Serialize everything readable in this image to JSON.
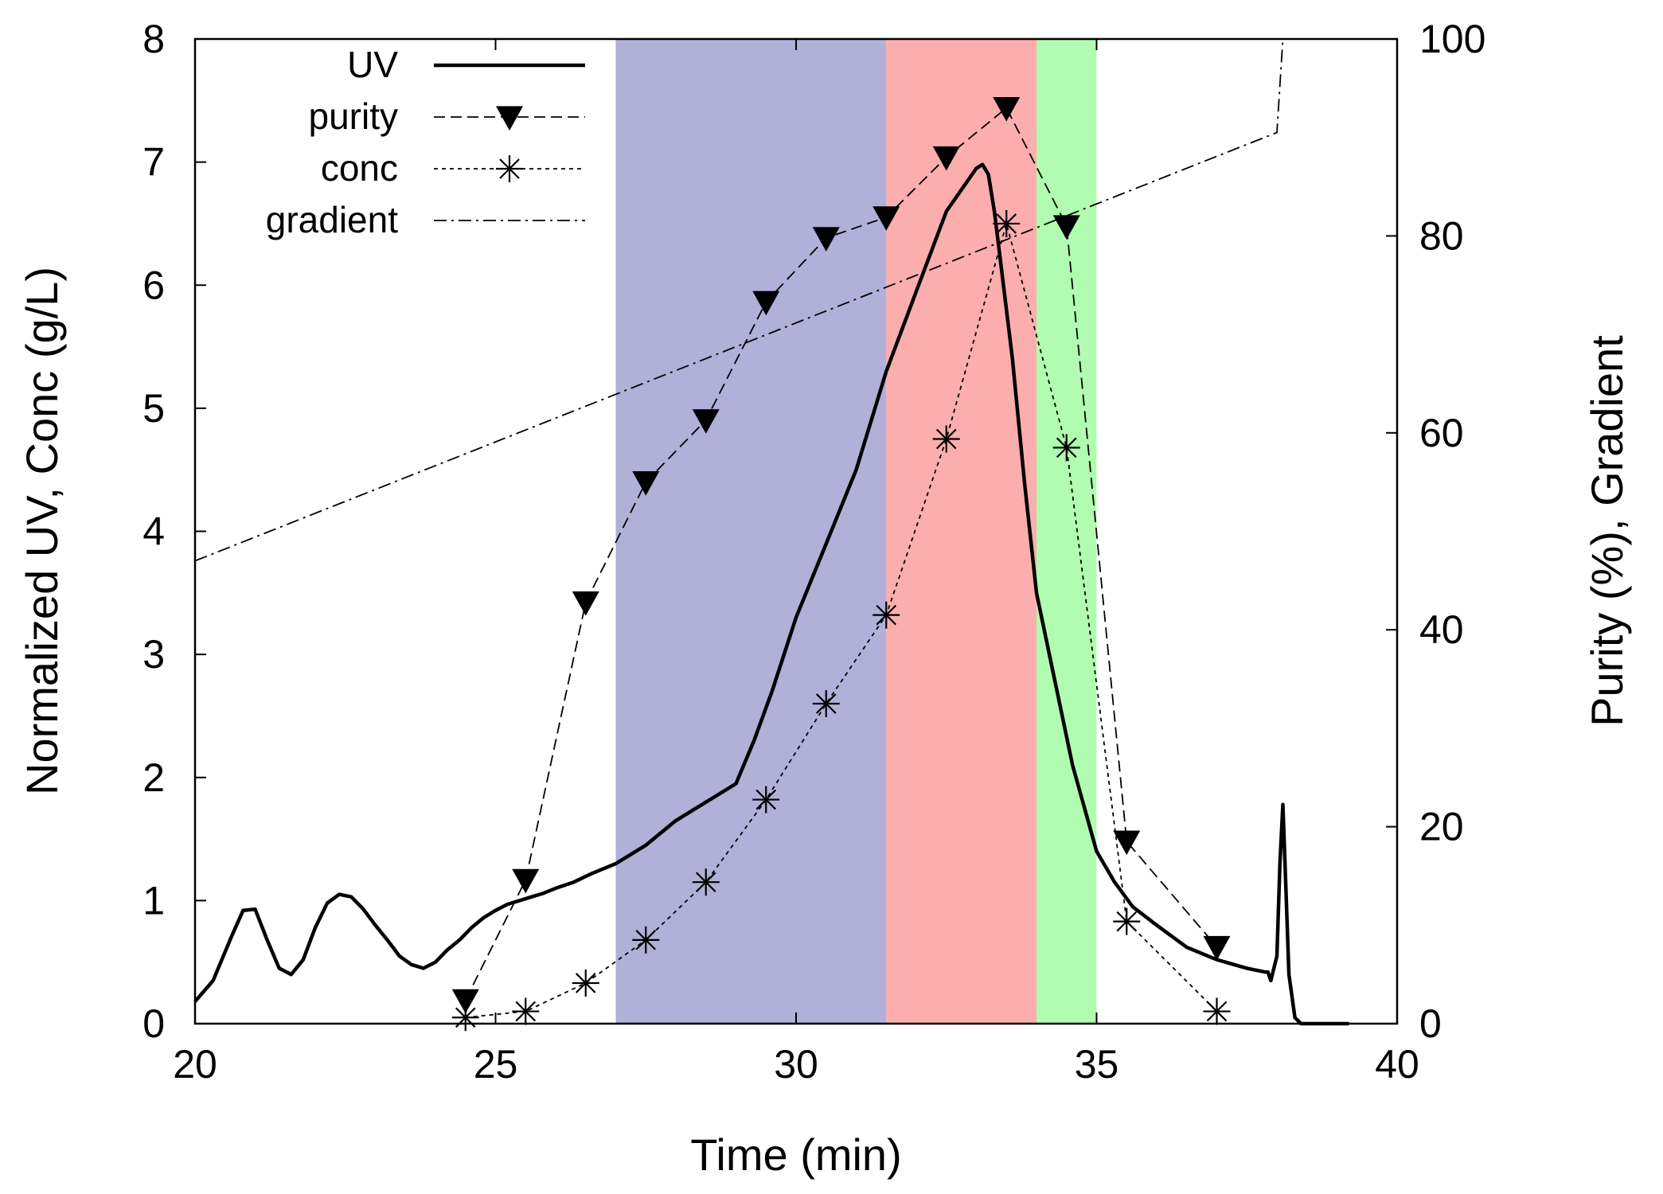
{
  "chart_data": {
    "type": "line",
    "title": "",
    "xlabel": "Time (min)",
    "ylabel": "Normalized UV, Conc (g/L)",
    "y2label": "Purity (%), Gradient",
    "xlim": [
      20,
      40
    ],
    "ylim": [
      0,
      8
    ],
    "y2lim": [
      0,
      100
    ],
    "xticks": [
      20,
      25,
      30,
      35,
      40
    ],
    "yticks": [
      0,
      1,
      2,
      3,
      4,
      5,
      6,
      7,
      8
    ],
    "y2ticks": [
      0,
      20,
      40,
      60,
      80,
      100
    ],
    "grid": false,
    "legend_position": "top-left",
    "fraction_bands": [
      {
        "x_start": 27.0,
        "x_end": 31.5,
        "color": "#b0b0d8"
      },
      {
        "x_start": 31.5,
        "x_end": 34.0,
        "color": "#fcaeae"
      },
      {
        "x_start": 34.0,
        "x_end": 35.0,
        "color": "#b0fcb0"
      }
    ],
    "series": [
      {
        "name": "UV",
        "axis": "left",
        "style": "solid",
        "marker": "none",
        "x": [
          20.0,
          20.3,
          20.6,
          20.8,
          21.0,
          21.2,
          21.4,
          21.6,
          21.8,
          22.0,
          22.2,
          22.4,
          22.6,
          22.8,
          23.0,
          23.2,
          23.4,
          23.6,
          23.8,
          24.0,
          24.2,
          24.4,
          24.6,
          24.8,
          25.0,
          25.2,
          25.4,
          25.6,
          25.8,
          26.0,
          26.3,
          26.6,
          27.0,
          27.5,
          28.0,
          28.5,
          29.0,
          29.3,
          29.6,
          30.0,
          30.5,
          31.0,
          31.5,
          32.0,
          32.5,
          33.0,
          33.1,
          33.2,
          33.3,
          33.4,
          33.6,
          33.8,
          34.0,
          34.3,
          34.6,
          35.0,
          35.3,
          35.6,
          36.0,
          36.5,
          37.0,
          37.5,
          37.8,
          37.85,
          37.9,
          38.0,
          38.05,
          38.1,
          38.15,
          38.2,
          38.3,
          38.4,
          38.6,
          39.0,
          39.2
        ],
        "y": [
          0.18,
          0.35,
          0.7,
          0.92,
          0.93,
          0.68,
          0.45,
          0.4,
          0.52,
          0.78,
          0.98,
          1.05,
          1.03,
          0.93,
          0.8,
          0.68,
          0.55,
          0.48,
          0.45,
          0.5,
          0.6,
          0.68,
          0.78,
          0.86,
          0.92,
          0.97,
          1.0,
          1.03,
          1.06,
          1.1,
          1.15,
          1.22,
          1.3,
          1.45,
          1.65,
          1.8,
          1.95,
          2.3,
          2.7,
          3.3,
          3.9,
          4.5,
          5.3,
          5.95,
          6.6,
          6.95,
          6.98,
          6.9,
          6.6,
          6.2,
          5.4,
          4.4,
          3.5,
          2.8,
          2.1,
          1.4,
          1.15,
          0.95,
          0.8,
          0.62,
          0.52,
          0.45,
          0.42,
          0.42,
          0.35,
          0.55,
          1.3,
          1.78,
          1.1,
          0.4,
          0.05,
          0.0,
          0.0,
          0.0,
          0.0
        ]
      },
      {
        "name": "purity",
        "axis": "right",
        "style": "dashed",
        "marker": "triangle-down",
        "x": [
          24.5,
          25.5,
          26.5,
          27.5,
          28.5,
          29.5,
          30.5,
          31.5,
          32.5,
          33.5,
          34.5,
          35.5,
          37.0
        ],
        "y": [
          2.4,
          14.6,
          42.8,
          55.0,
          61.3,
          73.3,
          79.8,
          81.9,
          88.0,
          93.0,
          81.0,
          18.5,
          7.8
        ]
      },
      {
        "name": "conc",
        "axis": "left",
        "style": "dotted",
        "marker": "asterisk",
        "x": [
          24.5,
          25.5,
          26.5,
          27.5,
          28.5,
          29.5,
          30.5,
          31.5,
          32.5,
          33.5,
          34.5,
          35.5,
          37.0
        ],
        "y": [
          0.05,
          0.1,
          0.33,
          0.68,
          1.15,
          1.82,
          2.6,
          3.32,
          4.75,
          6.5,
          4.68,
          0.83,
          0.1
        ]
      },
      {
        "name": "gradient",
        "axis": "right",
        "style": "dashdot",
        "marker": "none",
        "x": [
          20.0,
          38.0,
          38.1
        ],
        "y": [
          47.0,
          90.5,
          100.0
        ]
      }
    ]
  }
}
